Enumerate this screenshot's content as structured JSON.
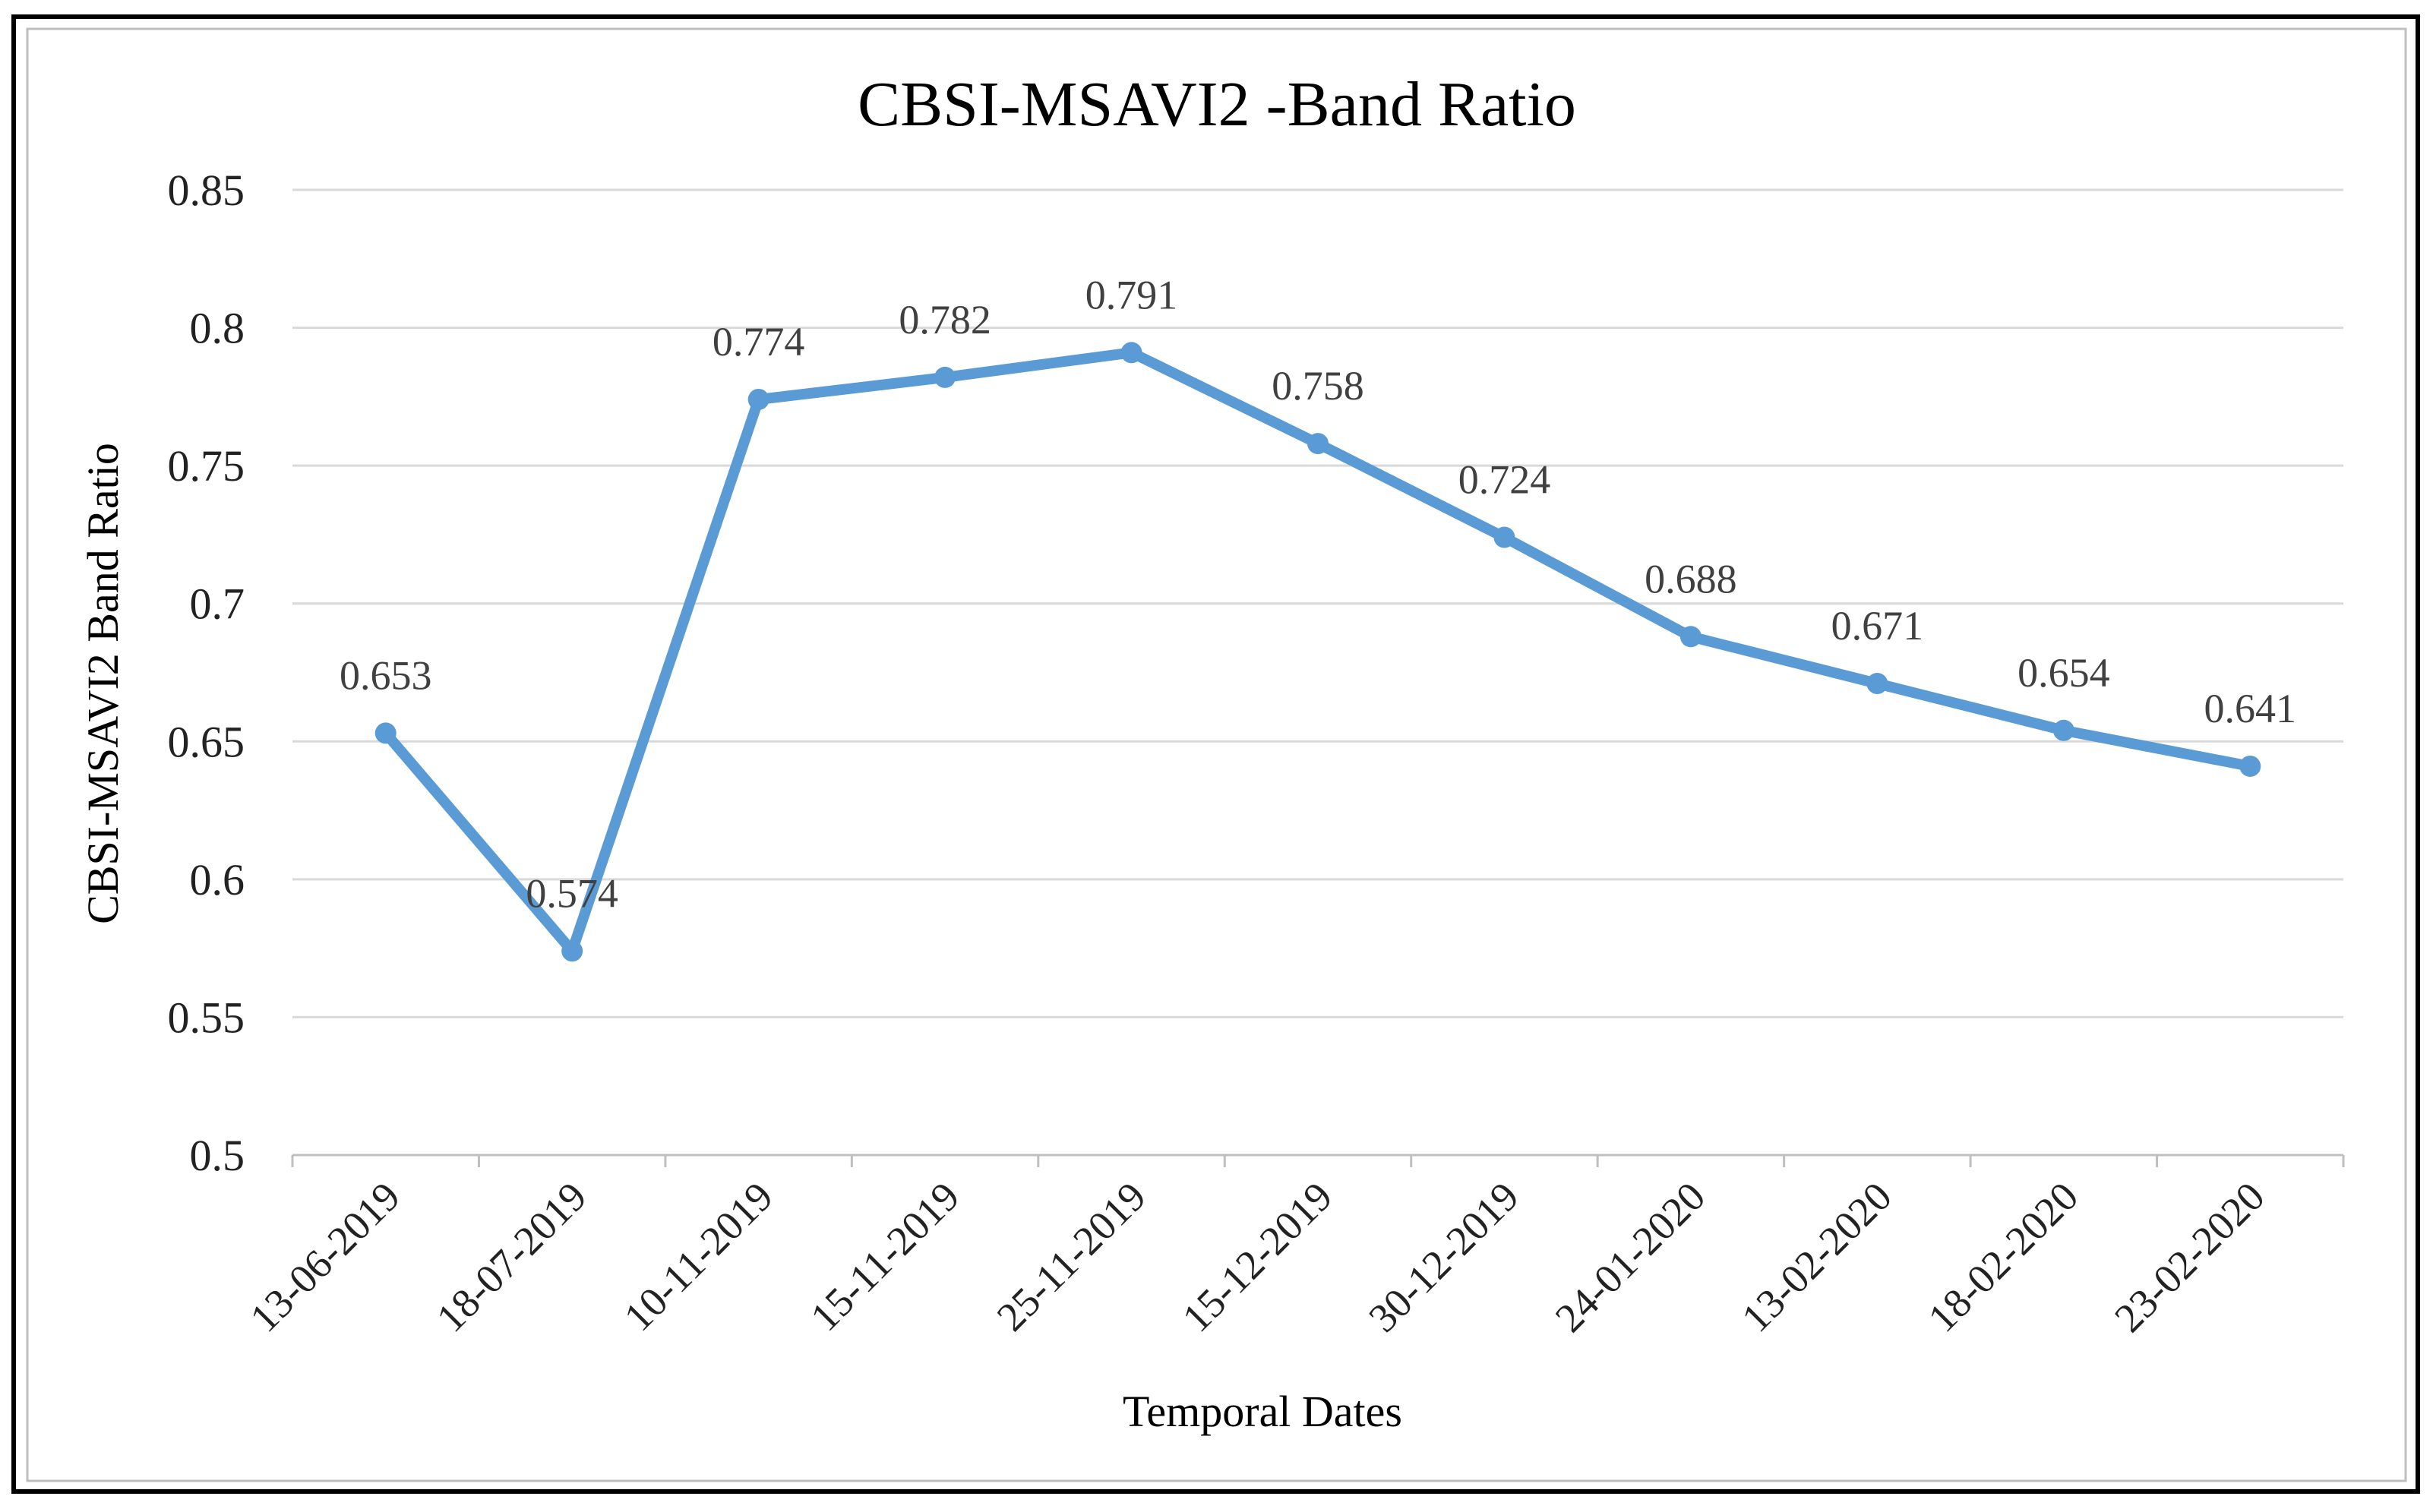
{
  "chart_data": {
    "type": "line",
    "title": "CBSI-MSAVI2 -Band Ratio",
    "xlabel": "Temporal Dates",
    "ylabel": "CBSI-MSAVI2 Band Ratio",
    "ylim": [
      0.5,
      0.85
    ],
    "yticks": [
      "0.5",
      "0.55",
      "0.6",
      "0.65",
      "0.7",
      "0.75",
      "0.8",
      "0.85"
    ],
    "grid": true,
    "categories": [
      "13-06-2019",
      "18-07-2019",
      "10-11-2019",
      "15-11-2019",
      "25-11-2019",
      "15-12-2019",
      "30-12-2019",
      "24-01-2020",
      "13-02-2020",
      "18-02-2020",
      "23-02-2020"
    ],
    "series": [
      {
        "name": "CBSI-MSAVI2 Band Ratio",
        "values": [
          0.653,
          0.574,
          0.774,
          0.782,
          0.791,
          0.758,
          0.724,
          0.688,
          0.671,
          0.654,
          0.641
        ],
        "labels": [
          "0.653",
          "0.574",
          "0.774",
          "0.782",
          "0.791",
          "0.758",
          "0.724",
          "0.688",
          "0.671",
          "0.654",
          "0.641"
        ],
        "color": "#5b9bd5"
      }
    ]
  }
}
